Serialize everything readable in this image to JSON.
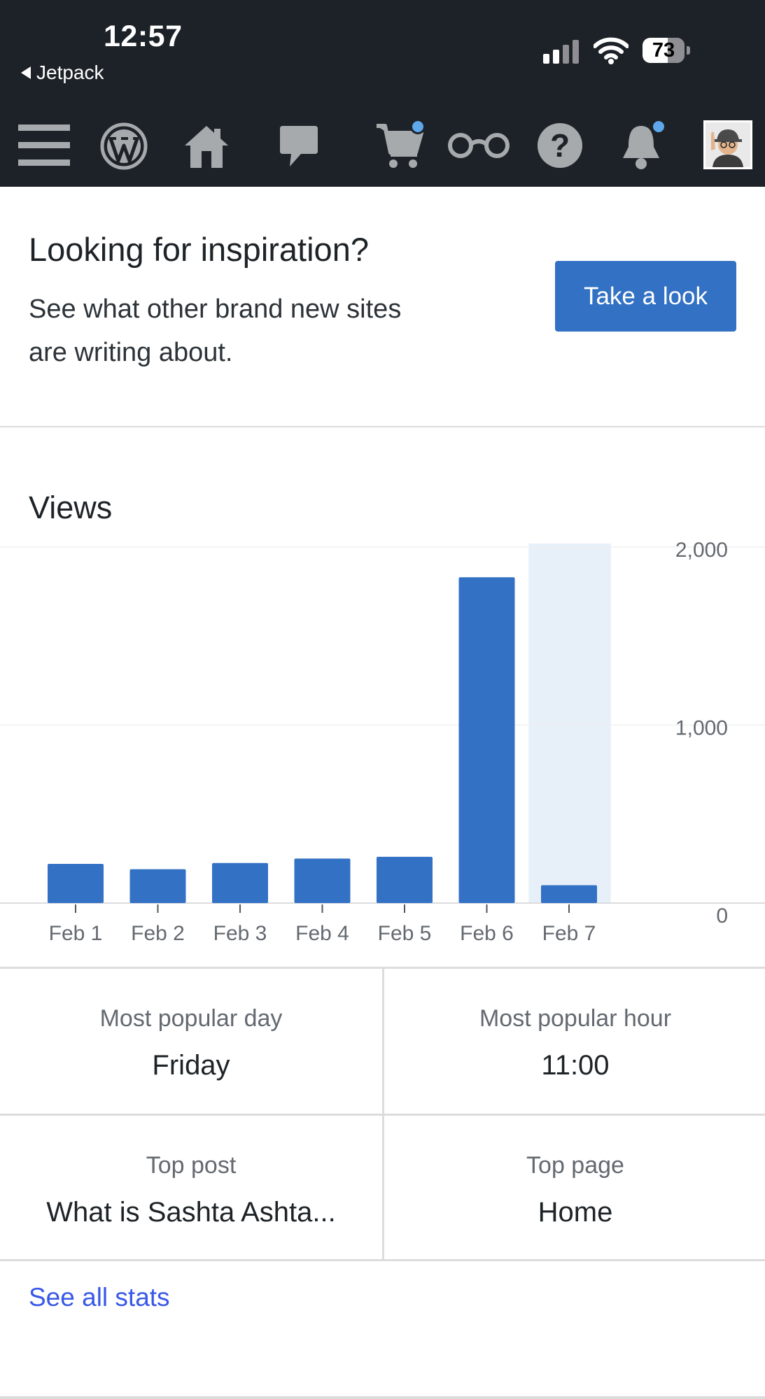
{
  "status_bar": {
    "time": "12:57",
    "back_app": "Jetpack",
    "battery_percent": "73",
    "signal_bars": 2
  },
  "masterbar": {
    "icons": [
      "menu-icon",
      "wordpress-icon",
      "home-icon",
      "comment-icon",
      "cart-icon",
      "reader-icon",
      "help-icon",
      "notifications-icon",
      "avatar"
    ],
    "badge_color": "#5da7ea",
    "background": "#1d2228"
  },
  "inspiration": {
    "title": "Looking for inspiration?",
    "text": "See what other brand new sites are writing about.",
    "button": "Take a look",
    "button_color": "#3371c4"
  },
  "views": {
    "title": "Views"
  },
  "chart_data": {
    "type": "bar",
    "categories": [
      "Feb 1",
      "Feb 2",
      "Feb 3",
      "Feb 4",
      "Feb 5",
      "Feb 6",
      "Feb 7"
    ],
    "values": [
      220,
      190,
      225,
      250,
      260,
      1830,
      100
    ],
    "ylim": [
      0,
      2000
    ],
    "yticks": [
      "2,000",
      "1,000",
      "0"
    ],
    "highlighted_category": "Feb 7",
    "bar_color": "#3371c4",
    "highlight_color": "#e7eff8",
    "grid": true
  },
  "highlights": [
    {
      "label": "Most popular day",
      "value": "Friday"
    },
    {
      "label": "Most popular hour",
      "value": "11:00"
    },
    {
      "label": "Top post",
      "value": "What is Sashta Ashta..."
    },
    {
      "label": "Top page",
      "value": "Home"
    }
  ],
  "links": {
    "see_all": "See all stats"
  }
}
